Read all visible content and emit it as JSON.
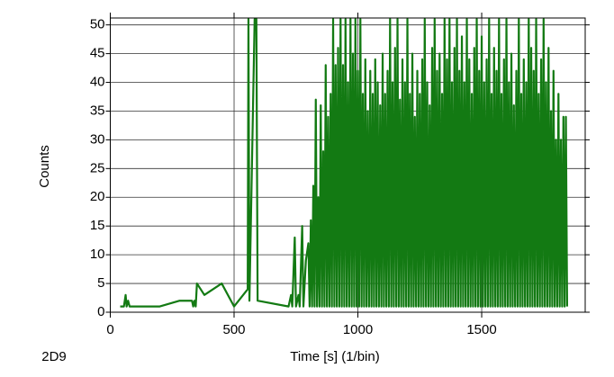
{
  "chart_data": {
    "type": "line",
    "xlabel": "Time [s] (1/bin)",
    "ylabel": "Counts",
    "corner_label": "2D9",
    "xlim": [
      0,
      1918
    ],
    "ylim": [
      0,
      51.2
    ],
    "xticks": [
      0,
      500,
      1000,
      1500
    ],
    "yticks": [
      0,
      5,
      10,
      15,
      20,
      25,
      30,
      35,
      40,
      45,
      50
    ],
    "grid": true,
    "x": [
      40,
      55,
      62,
      66,
      72,
      78,
      200,
      280,
      330,
      335,
      340,
      345,
      350,
      380,
      450,
      500,
      555,
      558,
      562,
      583,
      590,
      595,
      720,
      730,
      735,
      745,
      750,
      760,
      765,
      775,
      780,
      790,
      800,
      805,
      810,
      815,
      820,
      825,
      830,
      835,
      840,
      845,
      850,
      855,
      860,
      865,
      870,
      875,
      880,
      885,
      890,
      895,
      900,
      905,
      910,
      915,
      920,
      925,
      930,
      935,
      940,
      945,
      950,
      955,
      960,
      965,
      970,
      975,
      980,
      985,
      990,
      995,
      1000,
      1005,
      1010,
      1015,
      1020,
      1025,
      1030,
      1035,
      1040,
      1045,
      1050,
      1055,
      1060,
      1065,
      1070,
      1075,
      1080,
      1085,
      1090,
      1095,
      1100,
      1105,
      1110,
      1115,
      1120,
      1125,
      1130,
      1135,
      1140,
      1145,
      1150,
      1155,
      1160,
      1165,
      1170,
      1175,
      1180,
      1185,
      1190,
      1195,
      1200,
      1205,
      1210,
      1215,
      1220,
      1225,
      1230,
      1235,
      1240,
      1245,
      1250,
      1255,
      1260,
      1265,
      1270,
      1275,
      1280,
      1285,
      1290,
      1295,
      1300,
      1305,
      1310,
      1315,
      1320,
      1325,
      1330,
      1335,
      1340,
      1345,
      1350,
      1355,
      1360,
      1365,
      1370,
      1375,
      1380,
      1385,
      1390,
      1395,
      1400,
      1405,
      1410,
      1415,
      1420,
      1425,
      1430,
      1435,
      1440,
      1445,
      1450,
      1455,
      1460,
      1465,
      1470,
      1475,
      1480,
      1485,
      1490,
      1495,
      1500,
      1505,
      1510,
      1515,
      1520,
      1525,
      1530,
      1535,
      1540,
      1545,
      1550,
      1555,
      1560,
      1565,
      1570,
      1575,
      1580,
      1585,
      1590,
      1595,
      1600,
      1605,
      1610,
      1615,
      1620,
      1625,
      1630,
      1635,
      1640,
      1645,
      1650,
      1655,
      1660,
      1665,
      1670,
      1675,
      1680,
      1685,
      1690,
      1695,
      1700,
      1705,
      1710,
      1715,
      1720,
      1725,
      1730,
      1735,
      1740,
      1745,
      1750,
      1755,
      1760,
      1765,
      1770,
      1775,
      1780,
      1785,
      1790,
      1795,
      1800,
      1805,
      1810,
      1815,
      1820,
      1825,
      1830,
      1835,
      1840,
      1845
    ],
    "series": [
      {
        "color": "#137a13",
        "values": [
          1,
          1,
          3,
          1,
          2,
          1,
          1,
          2,
          2,
          1,
          2,
          1,
          5,
          3,
          5,
          1,
          4,
          51,
          2,
          51,
          51,
          2,
          1,
          3,
          1,
          13,
          1,
          3,
          1,
          15,
          1,
          9,
          12,
          1,
          16,
          1,
          22,
          1,
          37,
          1,
          20,
          1,
          36,
          1,
          28,
          1,
          43,
          1,
          34,
          1,
          38,
          1,
          51,
          1,
          43,
          1,
          46,
          1,
          51,
          1,
          43,
          1,
          51,
          1,
          40,
          1,
          51,
          1,
          45,
          1,
          51,
          1,
          42,
          1,
          51,
          1,
          38,
          1,
          44,
          1,
          35,
          1,
          42,
          1,
          38,
          1,
          44,
          1,
          40,
          1,
          36,
          1,
          45,
          1,
          38,
          1,
          42,
          1,
          51,
          1,
          40,
          1,
          46,
          1,
          51,
          1,
          37,
          1,
          44,
          1,
          40,
          1,
          51,
          1,
          38,
          1,
          45,
          1,
          34,
          1,
          42,
          1,
          38,
          1,
          44,
          1,
          51,
          1,
          40,
          1,
          36,
          1,
          46,
          1,
          51,
          1,
          42,
          1,
          45,
          1,
          38,
          1,
          51,
          1,
          44,
          1,
          51,
          1,
          40,
          1,
          46,
          1,
          51,
          1,
          42,
          1,
          48,
          1,
          40,
          1,
          51,
          1,
          44,
          1,
          38,
          1,
          46,
          1,
          51,
          1,
          42,
          1,
          48,
          1,
          40,
          1,
          44,
          1,
          51,
          1,
          38,
          1,
          46,
          1,
          42,
          1,
          51,
          1,
          38,
          1,
          44,
          1,
          51,
          1,
          40,
          1,
          45,
          1,
          36,
          1,
          42,
          1,
          51,
          1,
          38,
          1,
          44,
          1,
          40,
          1,
          51,
          1,
          46,
          1,
          42,
          1,
          51,
          1,
          38,
          1,
          44,
          1,
          51,
          1,
          40,
          1,
          46,
          1,
          35,
          1,
          42,
          1,
          30,
          1,
          38,
          1,
          30,
          1,
          34,
          1,
          34,
          1
        ]
      }
    ]
  }
}
